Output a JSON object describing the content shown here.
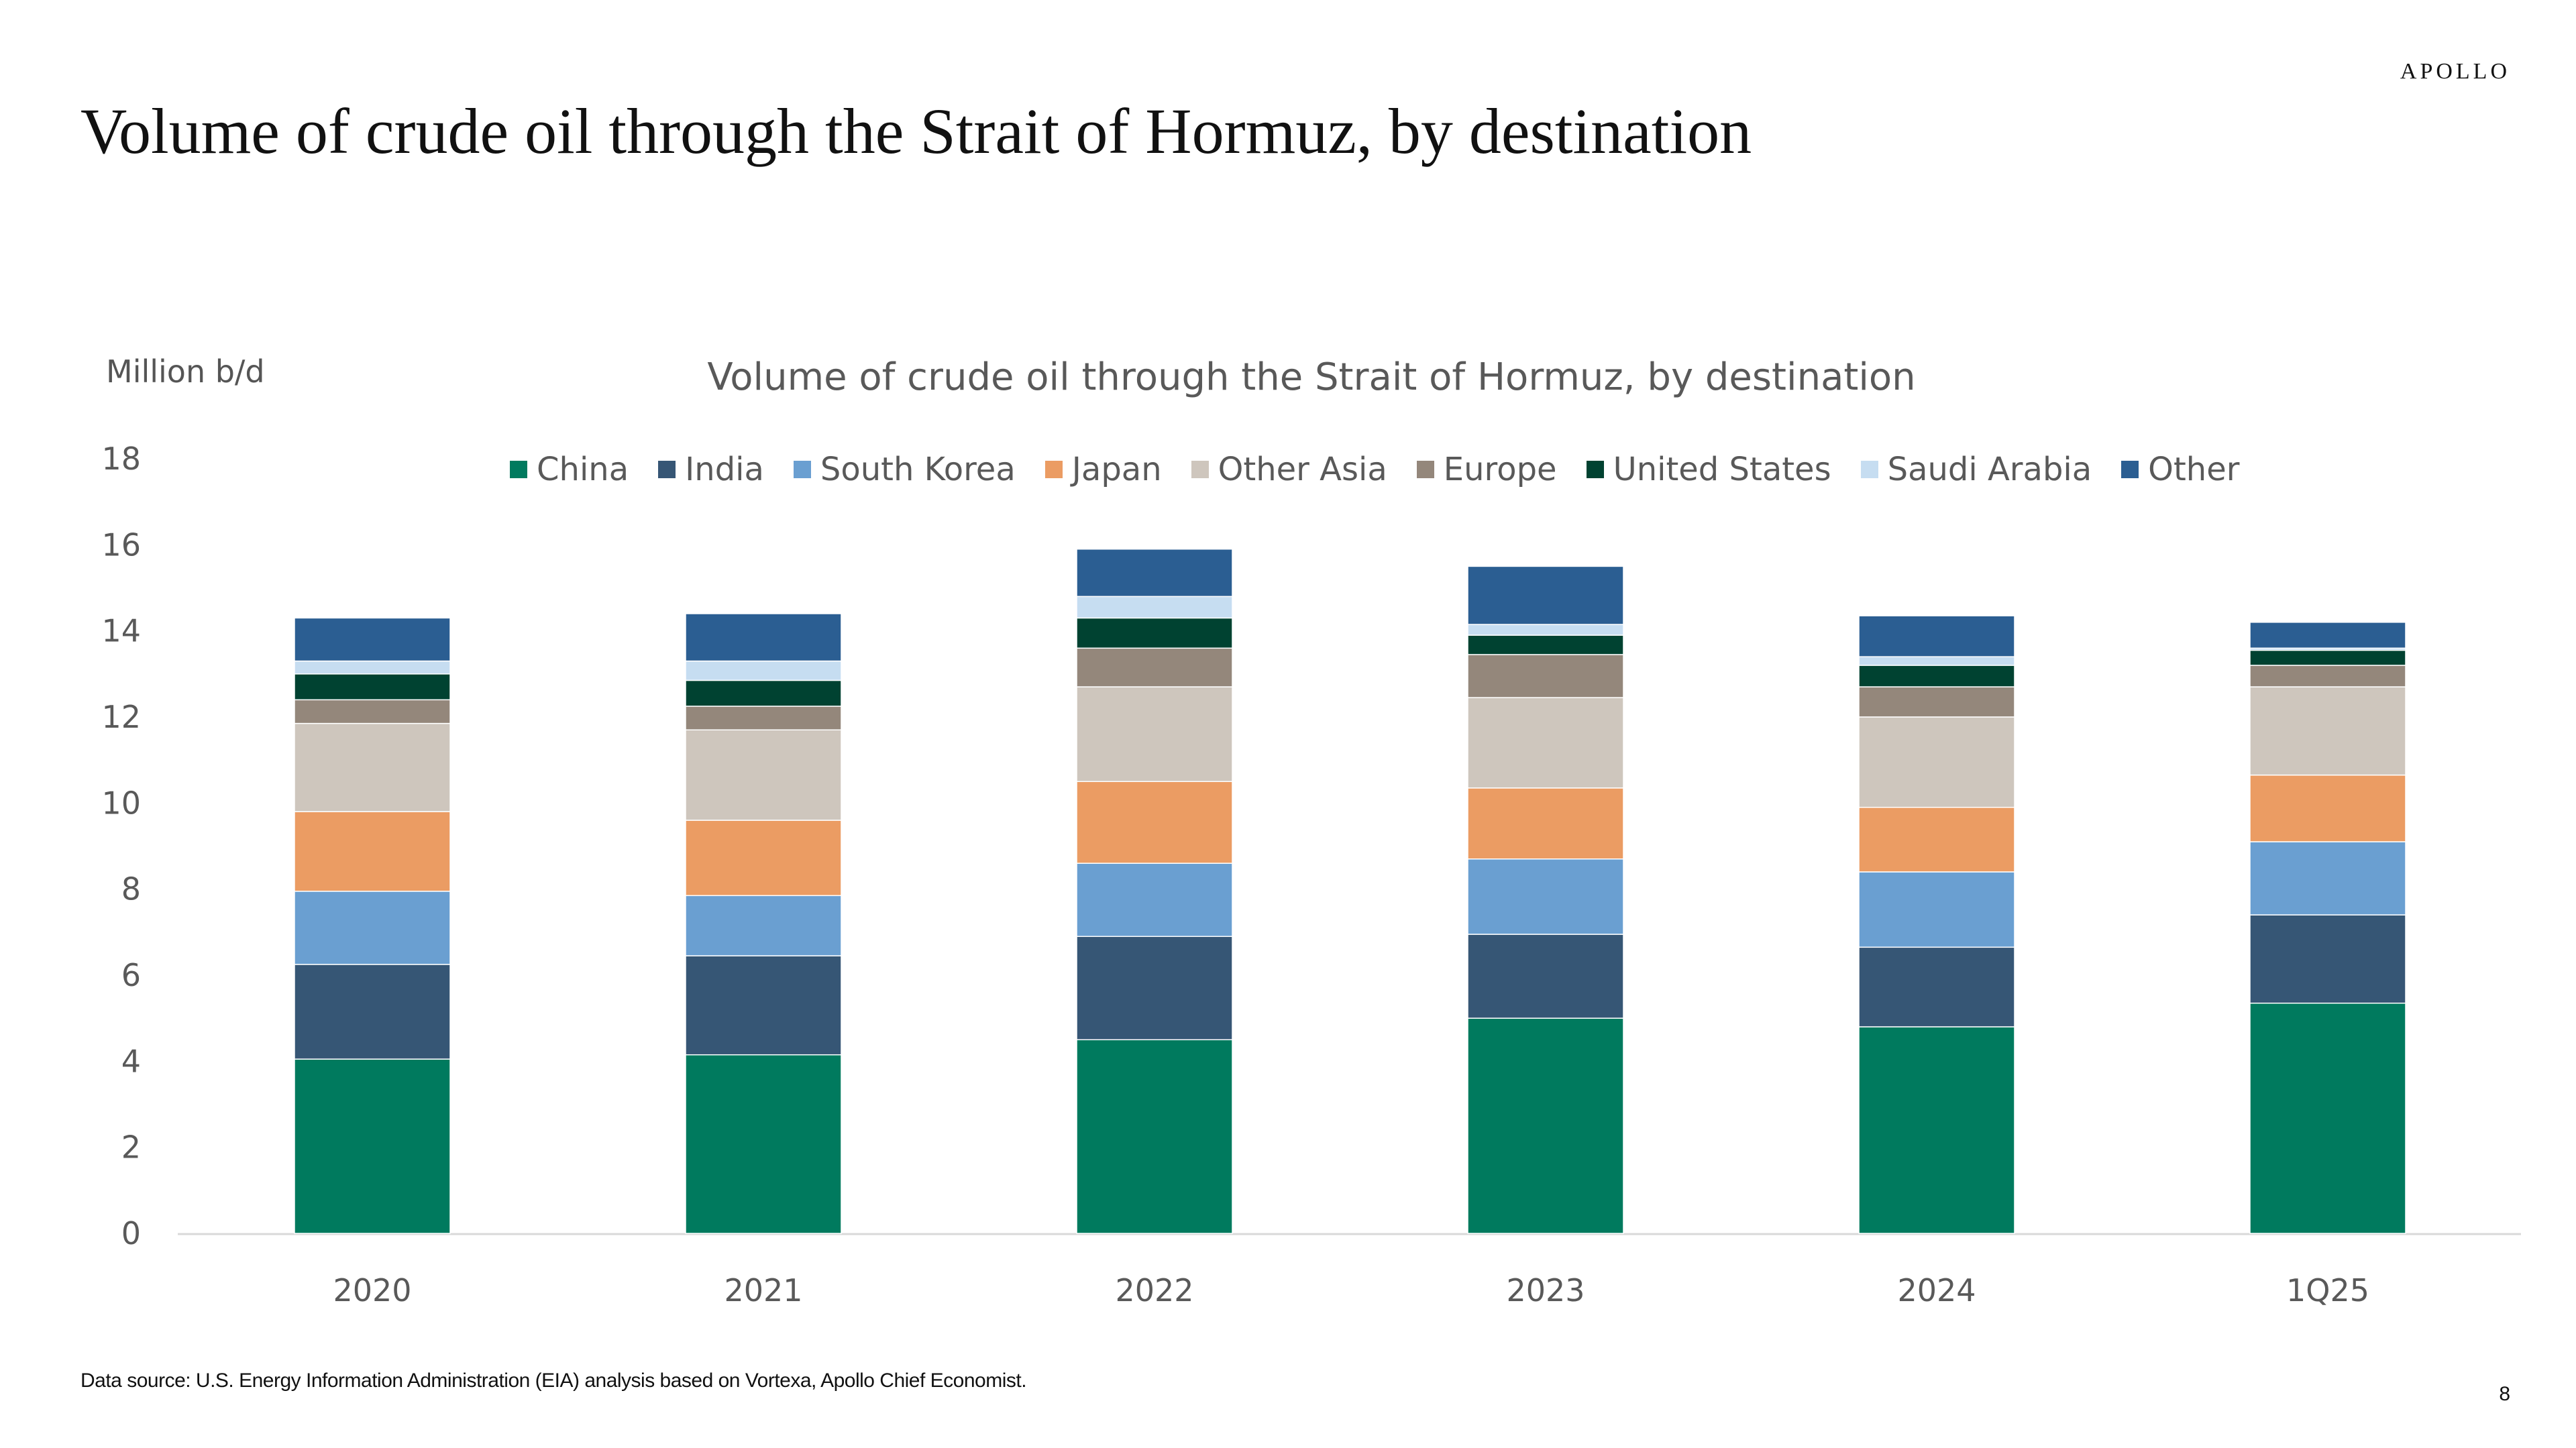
{
  "header": {
    "brand": "APOLLO",
    "title": "Volume of crude oil through the Strait of Hormuz, by destination"
  },
  "chart_data": {
    "type": "bar",
    "stacked": true,
    "title": "Volume of crude oil through the Strait of Hormuz, by destination",
    "unit_label": "Million b/d",
    "xlabel": "",
    "ylabel": "",
    "ylim": [
      0,
      18
    ],
    "yticks": [
      0,
      2,
      4,
      6,
      8,
      10,
      12,
      14,
      16,
      18
    ],
    "grid": false,
    "legend_position": "top",
    "categories": [
      "2020",
      "2021",
      "2022",
      "2023",
      "2024",
      "1Q25"
    ],
    "series": [
      {
        "name": "China",
        "color": "#007A5E",
        "values": [
          4.05,
          4.15,
          4.5,
          5.0,
          4.8,
          5.35
        ]
      },
      {
        "name": "India",
        "color": "#365675",
        "values": [
          2.2,
          2.3,
          2.4,
          1.95,
          1.85,
          2.05
        ]
      },
      {
        "name": "South Korea",
        "color": "#6A9FD1",
        "values": [
          1.7,
          1.4,
          1.7,
          1.75,
          1.75,
          1.7
        ]
      },
      {
        "name": "Japan",
        "color": "#EB9C63",
        "values": [
          1.85,
          1.75,
          1.9,
          1.65,
          1.5,
          1.55
        ]
      },
      {
        "name": "Other Asia",
        "color": "#CEC6BD",
        "values": [
          2.05,
          2.1,
          2.2,
          2.1,
          2.1,
          2.05
        ]
      },
      {
        "name": "Europe",
        "color": "#94877B",
        "values": [
          0.55,
          0.55,
          0.9,
          1.0,
          0.7,
          0.5
        ]
      },
      {
        "name": "United States",
        "color": "#004231",
        "values": [
          0.6,
          0.6,
          0.7,
          0.45,
          0.5,
          0.35
        ]
      },
      {
        "name": "Saudi Arabia",
        "color": "#C6DDF1",
        "values": [
          0.3,
          0.45,
          0.5,
          0.25,
          0.2,
          0.05
        ]
      },
      {
        "name": "Other",
        "color": "#2B5E92",
        "values": [
          1.0,
          1.1,
          1.1,
          1.35,
          0.95,
          0.6
        ]
      }
    ]
  },
  "footer": {
    "source": "Data source: U.S. Energy Information Administration (EIA) analysis based on Vortexa, Apollo Chief Economist.",
    "page_number": "8"
  }
}
